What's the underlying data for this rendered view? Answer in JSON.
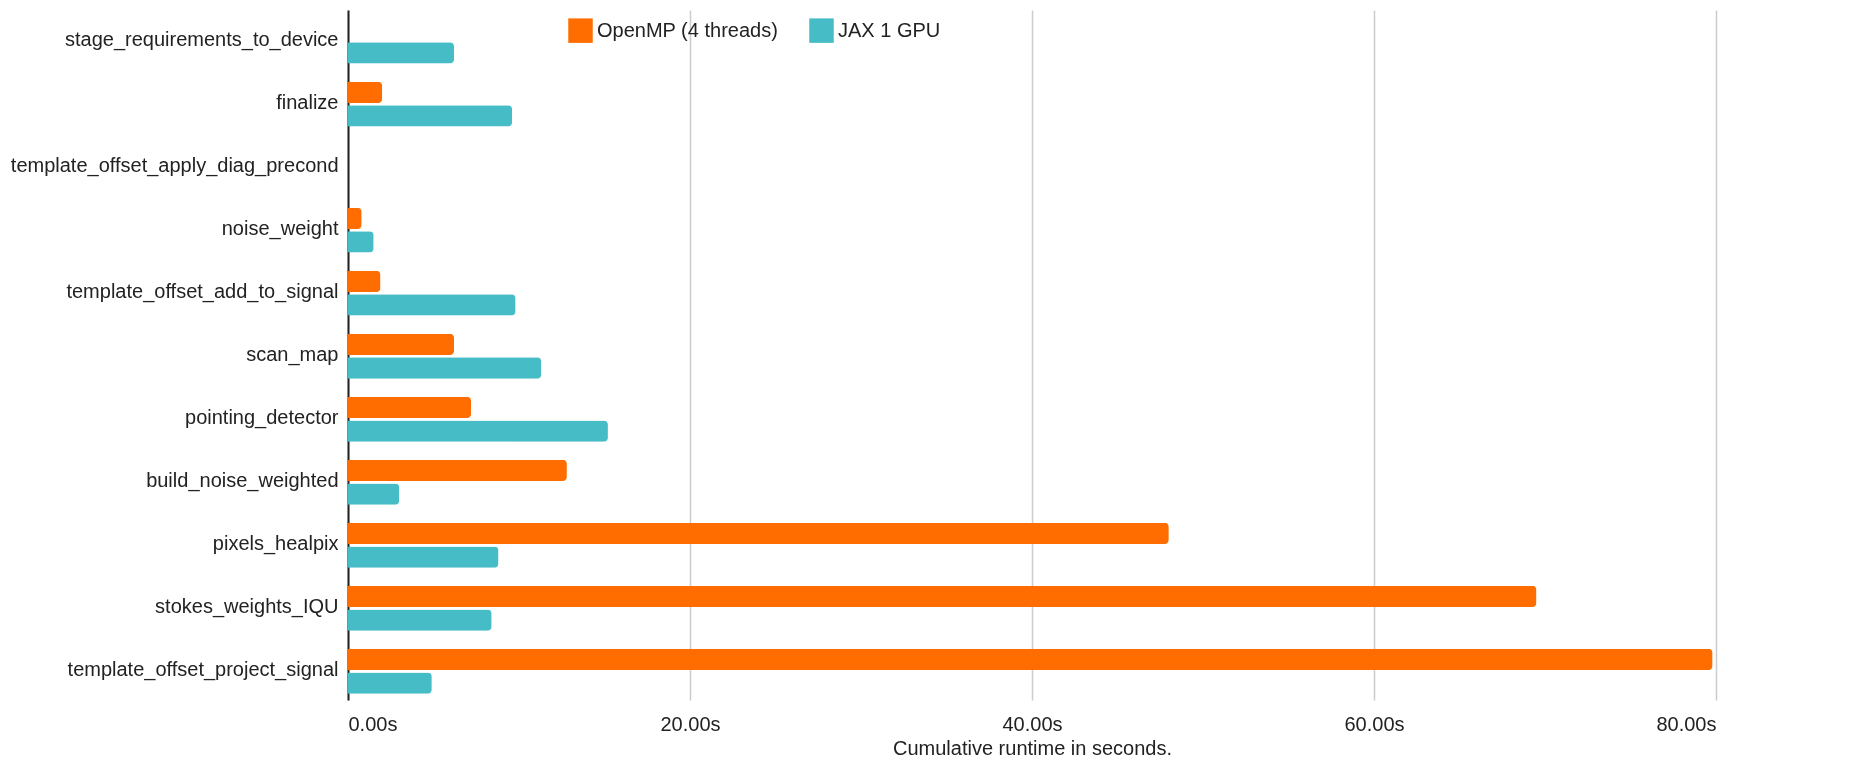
{
  "chart_data": {
    "type": "bar",
    "orientation": "horizontal",
    "xlabel": "Cumulative runtime in seconds.",
    "categories": [
      "stage_requirements_to_device",
      "finalize",
      "template_offset_apply_diag_precond",
      "noise_weight",
      "template_offset_add_to_signal",
      "scan_map",
      "pointing_detector",
      "build_noise_weighted",
      "pixels_healpix",
      "stokes_weights_IQU",
      "template_offset_project_signal"
    ],
    "series": [
      {
        "name": "OpenMP (4 threads)",
        "color": "#ff6d01",
        "values": [
          null,
          2.0,
          null,
          0.8,
          1.9,
          6.2,
          7.2,
          12.8,
          48.0,
          69.5,
          79.8
        ]
      },
      {
        "name": "JAX 1 GPU",
        "color": "#46bdc6",
        "values": [
          6.2,
          9.6,
          null,
          1.5,
          9.8,
          11.3,
          15.2,
          3.0,
          8.8,
          8.4,
          4.9
        ]
      }
    ],
    "xlim": [
      0,
      80
    ],
    "xticks": [
      {
        "value": 0,
        "label": "0.00s"
      },
      {
        "value": 20,
        "label": "20.00s"
      },
      {
        "value": 40,
        "label": "40.00s"
      },
      {
        "value": 60,
        "label": "60.00s"
      },
      {
        "value": 80,
        "label": "80.00s"
      }
    ],
    "grid": "x",
    "legend": "top"
  }
}
